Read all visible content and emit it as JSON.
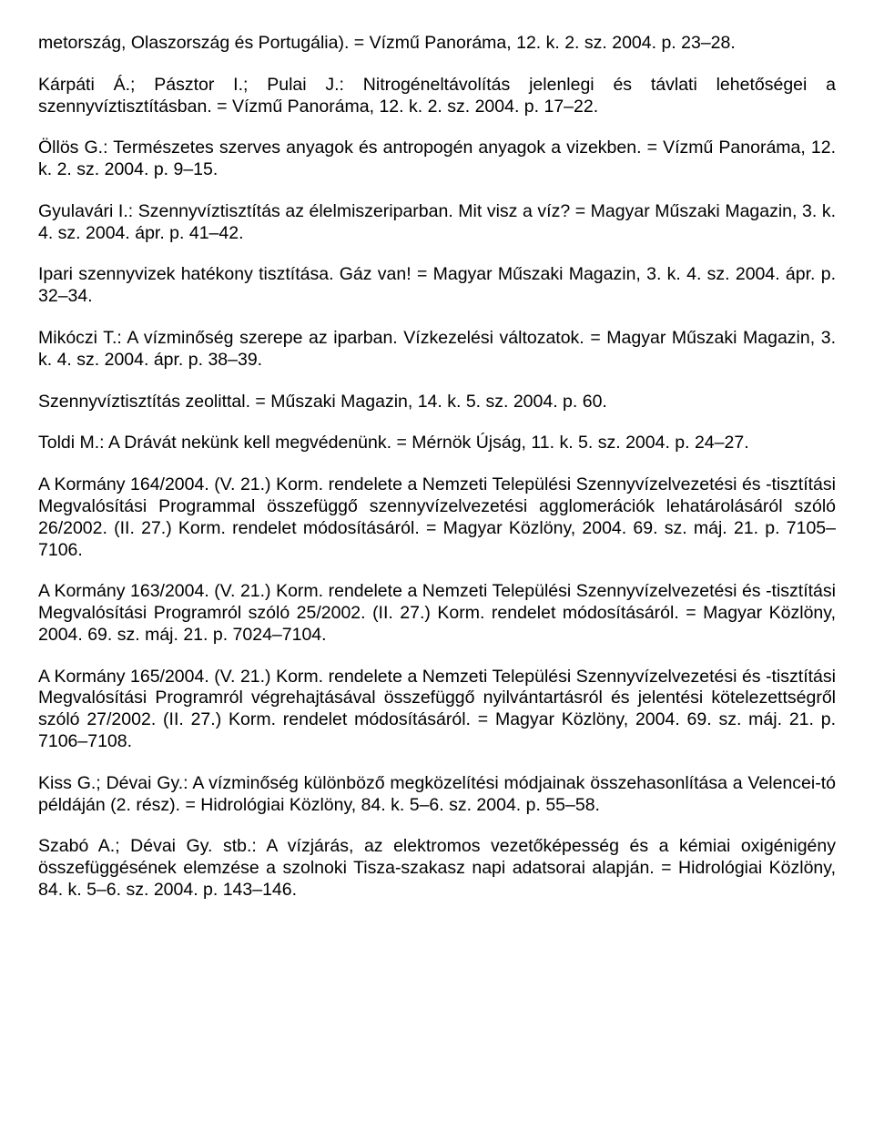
{
  "paragraphs": [
    "metország, Olaszország és Portugália). = Vízmű Panoráma, 12. k. 2. sz. 2004. p. 23–28.",
    "Kárpáti Á.; Pásztor I.; Pulai J.: Nitrogéneltávolítás jelenlegi és távlati lehetőségei a szennyvíztisztításban. = Vízmű Panoráma, 12. k. 2. sz. 2004. p. 17–22.",
    "Öllös G.: Természetes szerves anyagok és antropogén anyagok a vizekben. = Vízmű Panoráma, 12. k. 2. sz. 2004. p. 9–15.",
    "Gyulavári I.: Szennyvíztisztítás az élelmiszeriparban. Mit visz a víz? = Magyar Műszaki Magazin, 3. k. 4. sz. 2004. ápr. p. 41–42.",
    "Ipari szennyvizek hatékony tisztítása. Gáz van! = Magyar Műszaki Magazin, 3. k. 4. sz. 2004. ápr. p. 32–34.",
    "Mikóczi T.: A vízminőség szerepe az iparban. Vízkezelési változatok. = Magyar Műszaki Magazin, 3. k. 4. sz. 2004. ápr. p. 38–39.",
    "Szennyvíztisztítás zeolittal. = Műszaki Magazin, 14. k. 5. sz. 2004. p. 60.",
    "Toldi M.: A Drávát nekünk kell megvédenünk. = Mérnök Újság, 11. k. 5. sz. 2004. p. 24–27.",
    "A Kormány 164/2004. (V. 21.) Korm. rendelete a Nemzeti Települési Szennyvízelvezetési és -tisztítási Megvalósítási Programmal összefüggő szennyvízelvezetési agglomerációk lehatárolásáról szóló 26/2002. (II. 27.) Korm. rendelet módosításáról. = Magyar Közlöny, 2004. 69. sz. máj. 21. p. 7105–7106.",
    "A Kormány 163/2004. (V. 21.) Korm. rendelete a Nemzeti Települési Szennyvízelvezetési és -tisztítási Megvalósítási Programról szóló 25/2002. (II. 27.) Korm. rendelet módosításáról. = Magyar Közlöny, 2004. 69. sz. máj. 21. p. 7024–7104.",
    "A Kormány 165/2004. (V. 21.) Korm. rendelete a Nemzeti Települési Szennyvízelvezetési és -tisztítási Megvalósítási Programról végrehajtásával összefüggő nyilvántartásról és jelentési kötelezettségről szóló 27/2002. (II. 27.) Korm. rendelet módosításáról. = Magyar Közlöny, 2004. 69. sz. máj. 21. p. 7106–7108.",
    "Kiss G.; Dévai Gy.: A vízminőség különböző megközelítési módjainak összehasonlítása a Velencei-tó példáján (2. rész). = Hidrológiai Közlöny, 84. k. 5–6. sz. 2004. p. 55–58.",
    "Szabó A.; Dévai Gy. stb.: A vízjárás, az elektromos vezetőképesség és a kémiai oxigénigény összefüggésének elemzése a szolnoki Tisza-szakasz napi adatsorai alapján. = Hidrológiai Közlöny, 84. k. 5–6. sz. 2004. p. 143–146."
  ]
}
